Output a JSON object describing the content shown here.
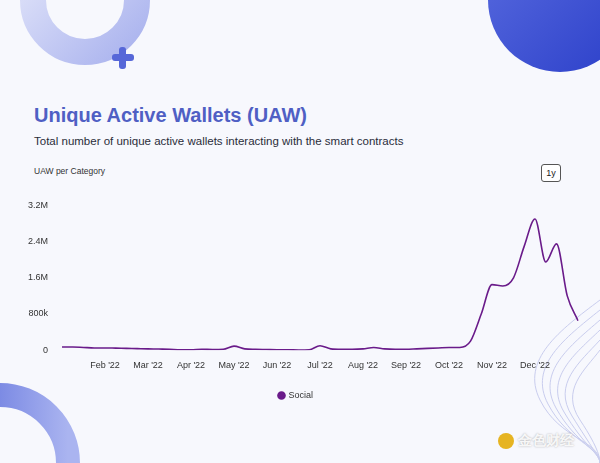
{
  "chart_data": {
    "type": "line",
    "title": "Unique Active Wallets (UAW)",
    "subtitle": "Total number of unique active wallets interacting with the smart contracts",
    "ylabel": "UAW per Category",
    "button": "1y",
    "watermark": "金色财经",
    "categories": [
      null,
      null,
      null,
      null,
      "Feb '22",
      null,
      null,
      null,
      "Mar '22",
      null,
      null,
      null,
      "Apr '22",
      null,
      null,
      null,
      "May '22",
      null,
      null,
      null,
      "Jun '22",
      null,
      null,
      null,
      "Jul '22",
      null,
      null,
      null,
      "Aug '22",
      null,
      null,
      null,
      "Sep '22",
      null,
      null,
      null,
      "Oct '22",
      null,
      null,
      null,
      "Nov '22",
      null,
      null,
      null,
      "Dec '22",
      null,
      null,
      null,
      null
    ],
    "series": [
      {
        "name": "Social",
        "color": "#6a1b8a",
        "values": [
          70000,
          70000,
          60000,
          50000,
          50000,
          45000,
          40000,
          35000,
          30000,
          25000,
          20000,
          10000,
          10000,
          20000,
          15000,
          20000,
          90000,
          30000,
          20000,
          15000,
          10000,
          10000,
          5000,
          10000,
          100000,
          30000,
          20000,
          20000,
          30000,
          60000,
          30000,
          20000,
          20000,
          30000,
          40000,
          50000,
          60000,
          60000,
          200000,
          800000,
          1450000,
          1420000,
          1600000,
          2300000,
          2900000,
          1950000,
          2350000,
          1200000,
          650000
        ]
      }
    ],
    "ylim": [
      0,
      3200000
    ],
    "yticks": [
      0,
      {
        "value": 800000,
        "label": "800k"
      },
      {
        "value": 1600000,
        "label": "1.6M"
      },
      {
        "value": 2400000,
        "label": "2.4M"
      },
      {
        "value": 3200000,
        "label": "3.2M"
      }
    ],
    "grid": false,
    "legend": "bottom"
  }
}
